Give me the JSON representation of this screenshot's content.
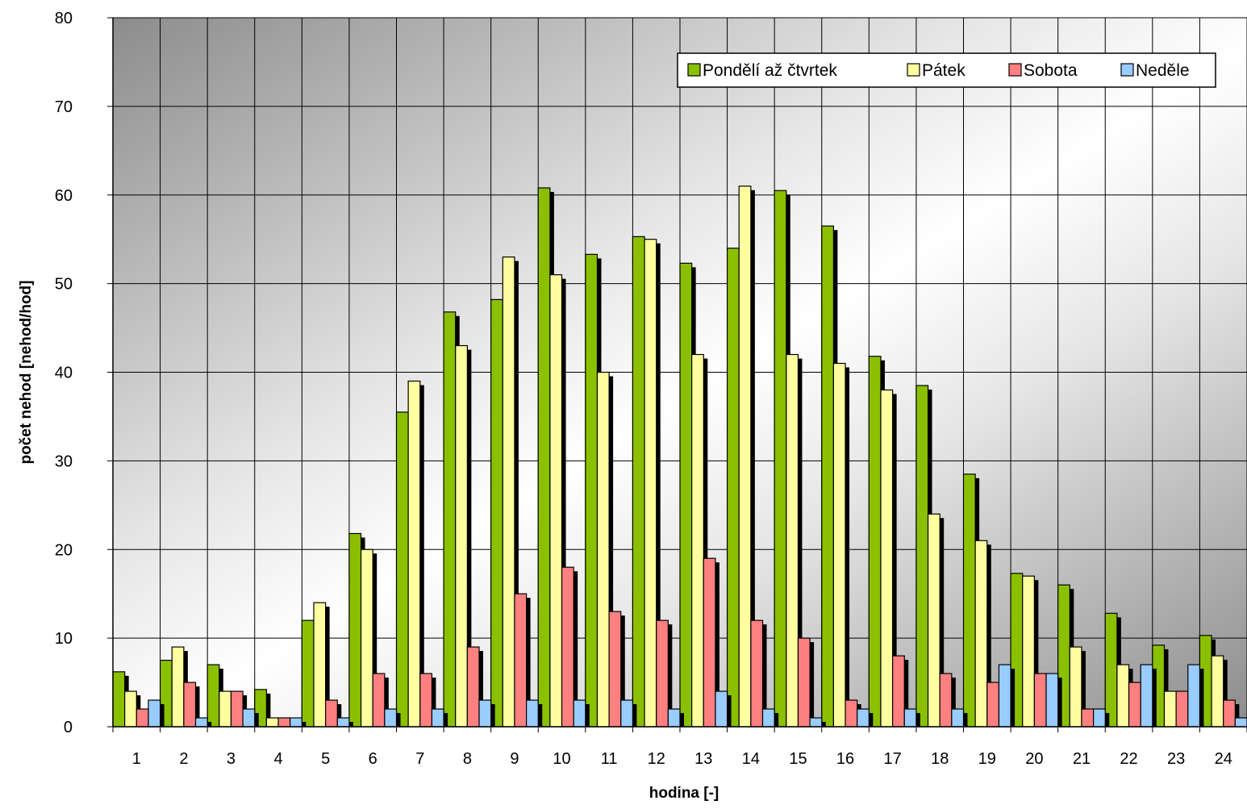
{
  "chart_data": {
    "type": "bar",
    "xlabel": "hodina [-]",
    "ylabel": "počet nehod [nehod/hod]",
    "ylim": [
      0,
      80
    ],
    "yticks": [
      0,
      10,
      20,
      30,
      40,
      50,
      60,
      70,
      80
    ],
    "grid": true,
    "legend_position": "top-right",
    "categories": [
      "1",
      "2",
      "3",
      "4",
      "5",
      "6",
      "7",
      "8",
      "9",
      "10",
      "11",
      "12",
      "13",
      "14",
      "15",
      "16",
      "17",
      "18",
      "19",
      "20",
      "21",
      "22",
      "23",
      "24"
    ],
    "series": [
      {
        "name": "Pondělí až čtvrtek",
        "color": "#8AC000",
        "values": [
          6.2,
          7.5,
          7,
          4.2,
          12,
          21.8,
          35.5,
          46.8,
          48.2,
          60.8,
          53.3,
          55.3,
          52.3,
          54,
          60.5,
          56.5,
          41.8,
          38.5,
          28.5,
          17.3,
          16,
          12.8,
          9.2,
          10.3
        ]
      },
      {
        "name": "Pátek",
        "color": "#FFFFA0",
        "values": [
          4,
          9,
          4,
          1,
          14,
          20,
          39,
          43,
          53,
          51,
          40,
          55,
          42,
          61,
          42,
          41,
          38,
          24,
          21,
          17,
          9,
          7,
          4,
          8
        ]
      },
      {
        "name": "Sobota",
        "color": "#FF8080",
        "values": [
          2,
          5,
          4,
          1,
          3,
          6,
          6,
          9,
          15,
          18,
          13,
          12,
          19,
          12,
          10,
          3,
          8,
          6,
          5,
          6,
          2,
          5,
          4,
          3
        ]
      },
      {
        "name": "Neděle",
        "color": "#99CCFF",
        "values": [
          3,
          1,
          2,
          1,
          1,
          2,
          2,
          3,
          3,
          3,
          3,
          2,
          4,
          2,
          1,
          2,
          2,
          2,
          7,
          6,
          2,
          7,
          7,
          1
        ]
      }
    ]
  }
}
